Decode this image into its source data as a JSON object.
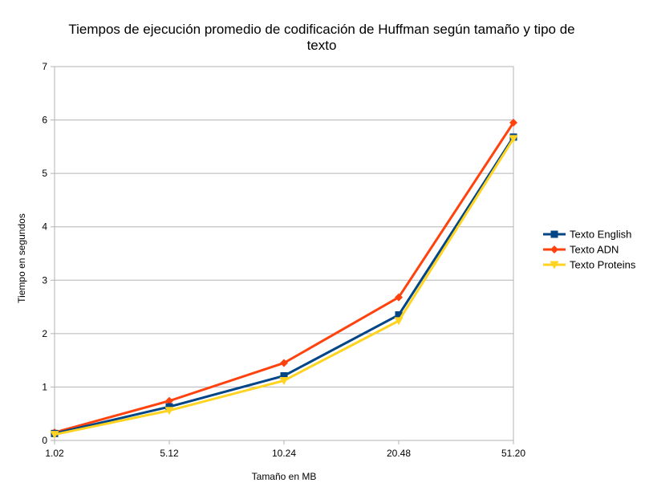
{
  "chart_data": {
    "type": "line",
    "title_lines": [
      "Tiempos de ejecución promedio de codificación de Huffman según tamaño y tipo de",
      "texto"
    ],
    "xlabel": "Tamaño en MB",
    "ylabel": "Tiempo en segundos",
    "categories": [
      "1.02",
      "5.12",
      "10.24",
      "20.48",
      "51.20"
    ],
    "ylim": [
      0,
      7
    ],
    "yticks": [
      "0",
      "1",
      "2",
      "3",
      "4",
      "5",
      "6",
      "7"
    ],
    "grid": true,
    "legend_position": "right",
    "series": [
      {
        "name": "Texto English",
        "color": "#004586",
        "marker": "square",
        "values": [
          0.13,
          0.63,
          1.21,
          2.35,
          5.68
        ]
      },
      {
        "name": "Texto ADN",
        "color": "#ff420e",
        "marker": "diamond",
        "values": [
          0.15,
          0.74,
          1.45,
          2.68,
          5.95
        ]
      },
      {
        "name": "Texto Proteins",
        "color": "#ffd320",
        "marker": "triangle-down",
        "values": [
          0.11,
          0.56,
          1.12,
          2.24,
          5.65
        ]
      }
    ]
  }
}
